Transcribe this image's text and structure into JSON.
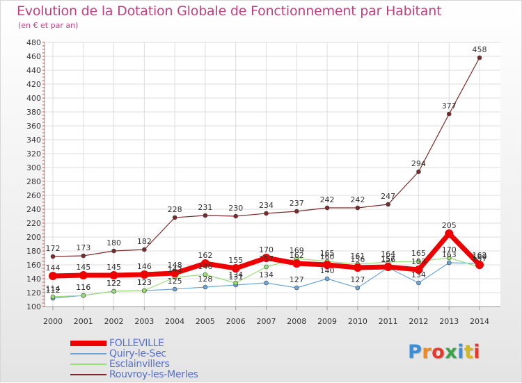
{
  "chart_data": {
    "type": "line",
    "title": "Evolution de la Dotation Globale de Fonctionnement par Habitant",
    "subtitle": "(en € et par an)",
    "x": [
      "2000",
      "2001",
      "2002",
      "2003",
      "2004",
      "2005",
      "2006",
      "2007",
      "2008",
      "2009",
      "2010",
      "2011",
      "2012",
      "2013",
      "2014"
    ],
    "ylim": [
      100,
      480
    ],
    "yticks": [
      100,
      120,
      140,
      160,
      180,
      200,
      220,
      240,
      260,
      280,
      300,
      320,
      340,
      360,
      380,
      400,
      420,
      440,
      460,
      480
    ],
    "grid": true,
    "legend_position": "bottom-left",
    "series": [
      {
        "name": "FOLLEVILLE",
        "color": "#ee0000",
        "values": [
          144,
          145,
          145,
          146,
          148,
          162,
          155,
          170,
          162,
          160,
          156,
          157,
          153,
          205,
          160
        ]
      },
      {
        "name": "Quiry-le-Sec",
        "color": "#6ea6d6",
        "values": [
          112,
          116,
          122,
          123,
          125,
          128,
          131,
          134,
          127,
          140,
          127,
          156,
          134,
          163,
          162
        ]
      },
      {
        "name": "Esclainvillers",
        "color": "#99dd77",
        "values": [
          114,
          116,
          122,
          123,
          142,
          146,
          134,
          157,
          169,
          165,
          161,
          164,
          165,
          170,
          157
        ]
      },
      {
        "name": "Rouvroy-les-Merles",
        "color": "#7a2a2a",
        "values": [
          172,
          173,
          180,
          182,
          228,
          231,
          230,
          234,
          237,
          242,
          242,
          247,
          294,
          377,
          458
        ]
      }
    ]
  },
  "logo": {
    "text": "Proxiti",
    "colors": [
      "#3a8fd8",
      "#f08a1c",
      "#e33a2c",
      "#3aa34a",
      "#3a8fd8",
      "#d4b81e",
      "#e33a2c"
    ]
  }
}
